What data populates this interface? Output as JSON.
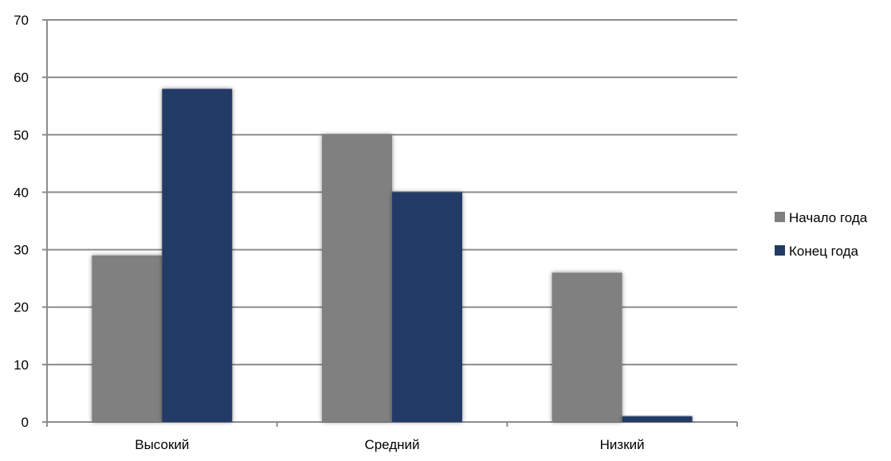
{
  "chart_data": {
    "type": "bar",
    "title": "",
    "xlabel": "",
    "ylabel": "",
    "categories": [
      "Высокий",
      "Средний",
      "Низкий"
    ],
    "series": [
      {
        "name": "Начало года",
        "values": [
          29,
          50,
          26
        ],
        "color": "#808080"
      },
      {
        "name": "Конец года",
        "values": [
          58,
          40,
          1
        ],
        "color": "#243A66"
      }
    ],
    "ylim": [
      0,
      70
    ],
    "yticks": [
      0,
      10,
      20,
      30,
      40,
      50,
      60,
      70
    ],
    "grid": true,
    "legend_position": "right"
  }
}
